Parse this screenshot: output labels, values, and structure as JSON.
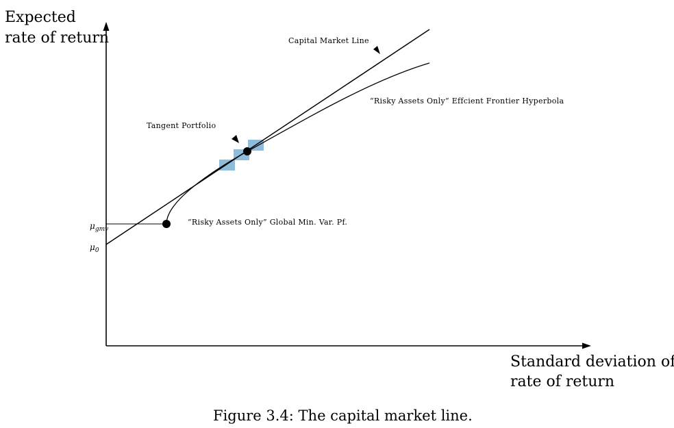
{
  "axes": {
    "y_label_line1": "Expected",
    "y_label_line2": "rate of return",
    "x_label_line1": "Standard deviation of",
    "x_label_line2": "rate of return"
  },
  "labels": {
    "cml": "Capital Market Line",
    "frontier": "“Risky Assets Only” Effcient Frontier Hyperbola",
    "tangent": "Tangent Portfolio",
    "gmv": "“Risky Assets Only” Global Min. Var. Pf."
  },
  "ticks": {
    "mu_gmv_base": "μ",
    "mu_gmv_sub": "gmv",
    "mu_0_base": "μ",
    "mu_0_sub": "0"
  },
  "caption": "Figure 3.4: The capital market line.",
  "colors": {
    "ink": "#000000",
    "highlight": "#8fbcdb"
  }
}
